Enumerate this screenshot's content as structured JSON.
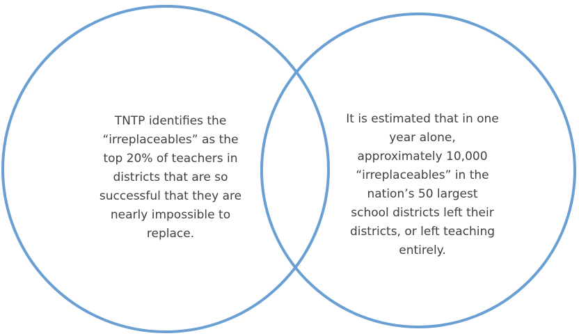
{
  "circles": [
    {
      "lines": [
        "TNTP identifies the",
        "“irreplaceables” as the",
        "top 20% of teachers in",
        "districts that are so",
        "successful that they are",
        "nearly impossible to",
        "replace."
      ]
    },
    {
      "lines": [
        "It is estimated that in one",
        "year alone,",
        "approximately 10,000",
        "“irreplaceables” in the",
        "nation’s 50 largest",
        "school districts left their",
        "districts, or left teaching",
        "entirely."
      ]
    }
  ]
}
